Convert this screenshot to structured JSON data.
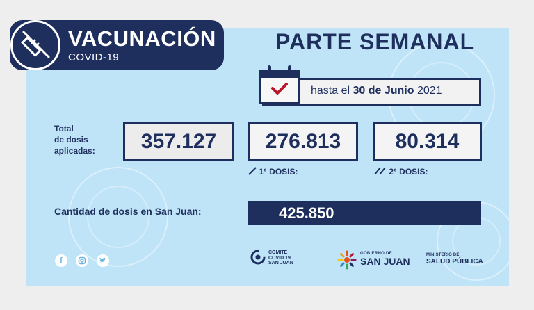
{
  "header": {
    "badge_title": "VACUNACIÓN",
    "badge_subtitle": "COVID-19",
    "report_title": "PARTE SEMANAL"
  },
  "date_line": {
    "prefix": "hasta el ",
    "date": "30 de Junio",
    "year": " 2021"
  },
  "stats": {
    "total_label_lines": [
      "Total",
      "de dosis",
      "aplicadas:"
    ],
    "total_value": "357.127",
    "first_dose_value": "276.813",
    "first_dose_label": "1° DOSIS:",
    "second_dose_value": "80.314",
    "second_dose_label": "2° DOSIS:"
  },
  "san_juan": {
    "label": "Cantidad de dosis en San Juan:",
    "value": "425.850"
  },
  "footer": {
    "social_icons": [
      "facebook-icon",
      "instagram-icon",
      "twitter-icon"
    ],
    "comite_lines": [
      "COMITÉ",
      "COVID 19",
      "SAN JUAN"
    ],
    "gobierno_small": "GOBIERNO DE",
    "gobierno_big": "SAN JUAN",
    "ministerio_small": "MINISTERIO DE",
    "ministerio_big": "SALUD PÚBLICA"
  },
  "colors": {
    "navy": "#1e2f5e",
    "card_background": "#bfe4f7",
    "check_red": "#b7182f",
    "logo_orange": "#e8501c"
  }
}
